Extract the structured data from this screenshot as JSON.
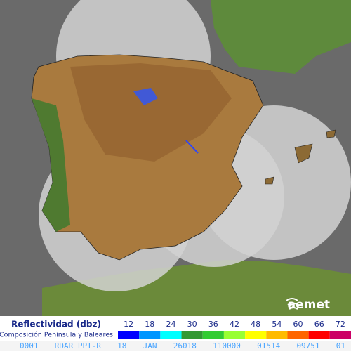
{
  "legend": {
    "title": "Reflectividad (dbz)",
    "subtitle": "Composición Península y Baleares",
    "levels": [
      {
        "value": 12,
        "color": "#0000ff"
      },
      {
        "value": 18,
        "color": "#0096ff"
      },
      {
        "value": 24,
        "color": "#00ffff"
      },
      {
        "value": 30,
        "color": "#339933"
      },
      {
        "value": 36,
        "color": "#33cc33"
      },
      {
        "value": 42,
        "color": "#99ff33"
      },
      {
        "value": 48,
        "color": "#ffff00"
      },
      {
        "value": 54,
        "color": "#ffbb00"
      },
      {
        "value": 60,
        "color": "#ff6600"
      },
      {
        "value": 66,
        "color": "#ff0000"
      },
      {
        "value": 72,
        "color": "#cc0066"
      }
    ]
  },
  "logo": "aemet",
  "footer": [
    "0001",
    "RDAR_PPI-R",
    "18",
    "JAN",
    "26018",
    "110000",
    "01514",
    "09751",
    "01"
  ]
}
